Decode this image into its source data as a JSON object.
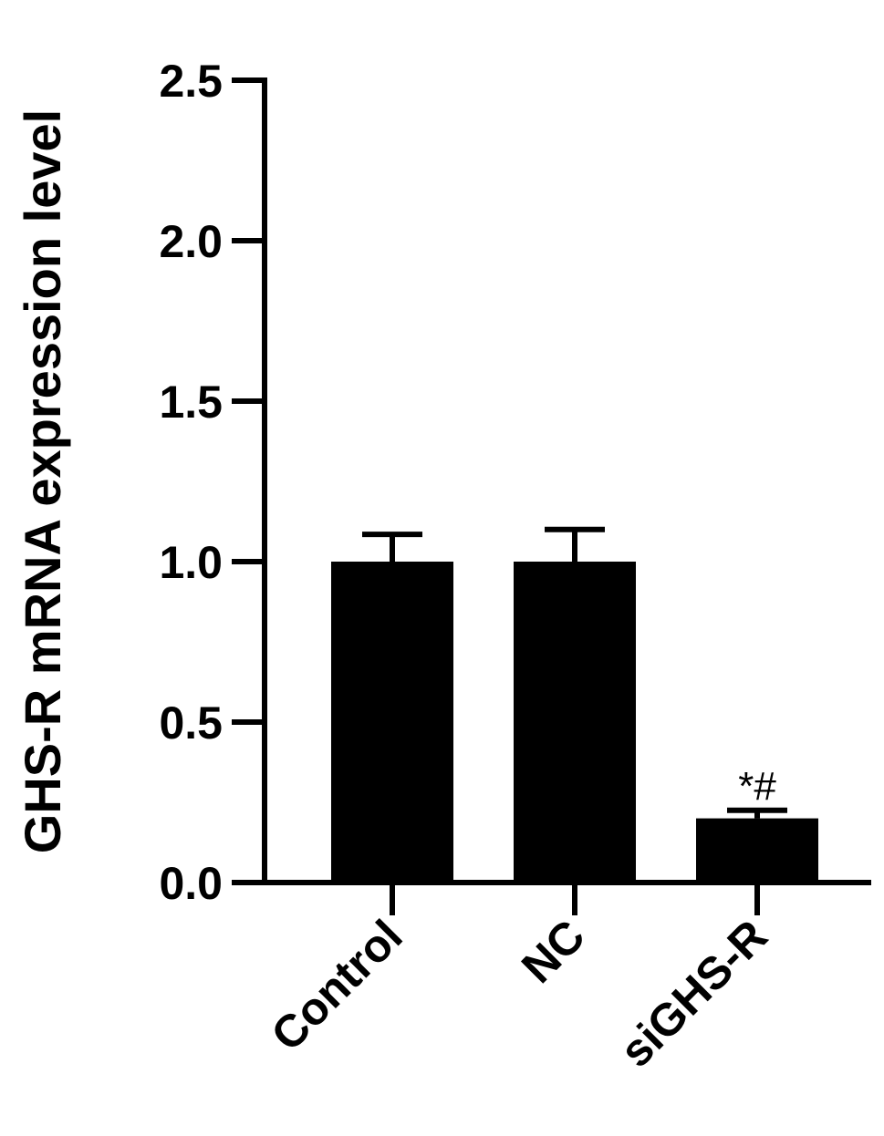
{
  "chart_data": {
    "type": "bar",
    "title": "",
    "xlabel": "",
    "ylabel": "GHS-R mRNA expression level",
    "categories": [
      "Control",
      "NC",
      "siGHS-R"
    ],
    "values": [
      1.0,
      1.0,
      0.2
    ],
    "errors": [
      0.085,
      0.1,
      0.025
    ],
    "annotations": [
      "",
      "",
      "*#"
    ],
    "yticks": [
      "0.0",
      "0.5",
      "1.0",
      "1.5",
      "2.0",
      "2.5"
    ],
    "ylim": [
      0,
      2.5
    ],
    "grid": false,
    "bar_color": "#000000"
  }
}
